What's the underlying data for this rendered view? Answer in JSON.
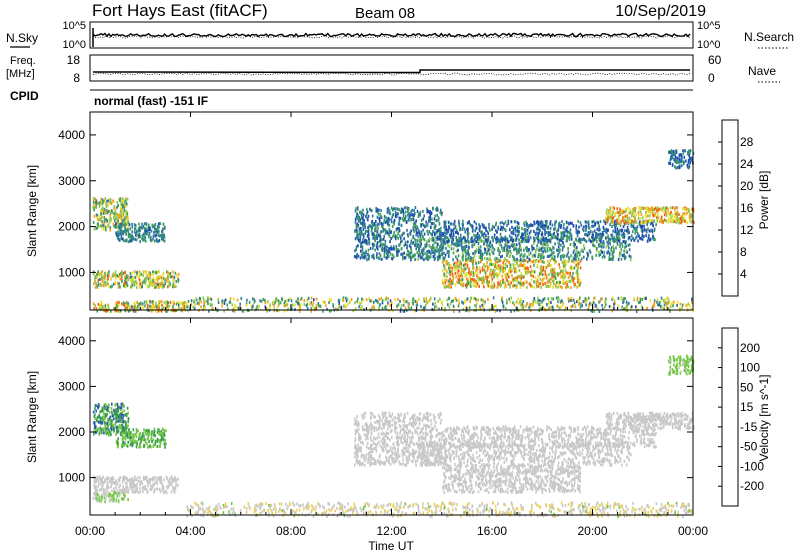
{
  "header": {
    "title": "Fort Hays East (fitACF)",
    "beam": "Beam 08",
    "date": "10/Sep/2019"
  },
  "noise_panel": {
    "left_label": "N.Sky",
    "right_label": "N.Search",
    "ticks": [
      "10^5",
      "10^0"
    ]
  },
  "freq_panel": {
    "left_label_1": "Freq.",
    "left_label_2": "[MHz]",
    "left_ticks": [
      "18",
      "8"
    ],
    "right_label": "Nave",
    "right_ticks": [
      "60",
      "0"
    ]
  },
  "cpid": {
    "label": "CPID",
    "value": "normal (fast) -151 IF"
  },
  "colors": {
    "power": [
      "#0022ee",
      "#1e4bb0",
      "#2f7a9c",
      "#3d9d5e",
      "#8fc850",
      "#e8e030",
      "#f0a020",
      "#ee6010",
      "#e01010"
    ],
    "velocity": [
      "#e01010",
      "#ee5010",
      "#f0a030",
      "#e8d060",
      "#c8c8c8",
      "#70c840",
      "#3a9a50",
      "#2a58a8",
      "#1a30c0"
    ]
  },
  "chart_data": [
    {
      "type": "heatmap",
      "name": "power",
      "ylabel": "Slant Range [km]",
      "yticks": [
        1000,
        2000,
        3000,
        4000
      ],
      "ylim": [
        180,
        4500
      ],
      "xlim": [
        0,
        24
      ],
      "xticks": [
        0,
        4,
        8,
        12,
        16,
        20,
        24
      ],
      "colorbar": {
        "label": "Power [dB]",
        "ticks": [
          "4",
          "8",
          "12",
          "16",
          "20",
          "24",
          "28"
        ],
        "range": [
          0,
          32
        ]
      },
      "regions": [
        {
          "t0": 0.1,
          "t1": 1.5,
          "r0": 1950,
          "r1": 2650,
          "v": [
            8,
            24
          ]
        },
        {
          "t0": 1.0,
          "t1": 3.0,
          "r0": 1700,
          "r1": 2100,
          "v": [
            6,
            14
          ]
        },
        {
          "t0": 0.1,
          "t1": 3.5,
          "r0": 700,
          "r1": 1050,
          "v": [
            10,
            26
          ]
        },
        {
          "t0": 0.1,
          "t1": 3.8,
          "r0": 180,
          "r1": 400,
          "v": [
            10,
            28
          ]
        },
        {
          "t0": 3.8,
          "t1": 24.0,
          "r0": 180,
          "r1": 480,
          "v": [
            6,
            24
          ]
        },
        {
          "t0": 10.5,
          "t1": 14.0,
          "r0": 1300,
          "r1": 2450,
          "v": [
            4,
            14
          ]
        },
        {
          "t0": 14.0,
          "t1": 19.5,
          "r0": 700,
          "r1": 1300,
          "v": [
            12,
            28
          ]
        },
        {
          "t0": 13.0,
          "t1": 21.5,
          "r0": 1300,
          "r1": 1800,
          "v": [
            6,
            16
          ]
        },
        {
          "t0": 14.0,
          "t1": 22.5,
          "r0": 1700,
          "r1": 2150,
          "v": [
            4,
            12
          ]
        },
        {
          "t0": 20.5,
          "t1": 24.0,
          "r0": 2100,
          "r1": 2450,
          "v": [
            14,
            28
          ]
        },
        {
          "t0": 23.0,
          "t1": 24.0,
          "r0": 3300,
          "r1": 3700,
          "v": [
            4,
            12
          ]
        }
      ]
    },
    {
      "type": "heatmap",
      "name": "velocity",
      "ylabel": "Slant Range [km]",
      "xlabel": "Time UT",
      "yticks": [
        1000,
        2000,
        3000,
        4000
      ],
      "ylim": [
        180,
        4500
      ],
      "xlim": [
        0,
        24
      ],
      "xticks": [
        0,
        4,
        8,
        12,
        16,
        20,
        24
      ],
      "xticklabels": [
        "00:00",
        "04:00",
        "08:00",
        "12:00",
        "16:00",
        "20:00",
        "00:00"
      ],
      "colorbar": {
        "label": "Velocity [m s^-1]",
        "ticks": [
          "-200",
          "-100",
          "-50",
          "-15",
          "15",
          "50",
          "100",
          "200"
        ],
        "range": [
          -300,
          300
        ]
      },
      "regions": [
        {
          "t0": 0.1,
          "t1": 1.5,
          "r0": 1950,
          "r1": 2650,
          "v": [
            60,
            220
          ]
        },
        {
          "t0": 1.0,
          "t1": 3.0,
          "r0": 1700,
          "r1": 2100,
          "v": [
            40,
            150
          ]
        },
        {
          "t0": 0.1,
          "t1": 3.5,
          "r0": 700,
          "r1": 1050,
          "v": [
            -15,
            15
          ]
        },
        {
          "t0": 0.1,
          "t1": 1.5,
          "r0": 500,
          "r1": 700,
          "v": [
            20,
            60
          ]
        },
        {
          "t0": 3.8,
          "t1": 24.0,
          "r0": 180,
          "r1": 480,
          "v": [
            -80,
            40
          ]
        },
        {
          "t0": 10.5,
          "t1": 14.0,
          "r0": 1300,
          "r1": 2450,
          "v": [
            -15,
            15
          ]
        },
        {
          "t0": 14.0,
          "t1": 19.5,
          "r0": 700,
          "r1": 1300,
          "v": [
            -15,
            15
          ]
        },
        {
          "t0": 13.0,
          "t1": 21.5,
          "r0": 1300,
          "r1": 1800,
          "v": [
            -15,
            15
          ]
        },
        {
          "t0": 14.0,
          "t1": 22.5,
          "r0": 1700,
          "r1": 2150,
          "v": [
            -15,
            15
          ]
        },
        {
          "t0": 20.5,
          "t1": 24.0,
          "r0": 2100,
          "r1": 2450,
          "v": [
            -15,
            15
          ]
        },
        {
          "t0": 23.0,
          "t1": 24.0,
          "r0": 3300,
          "r1": 3700,
          "v": [
            20,
            100
          ]
        }
      ]
    }
  ]
}
